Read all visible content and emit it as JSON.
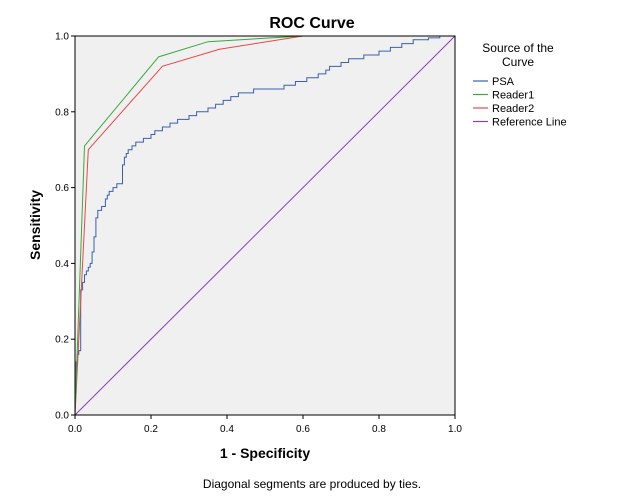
{
  "chart_data": {
    "type": "line",
    "title": "ROC Curve",
    "xlabel": "1 - Specificity",
    "ylabel": "Sensitivity",
    "xlim": [
      0,
      1
    ],
    "ylim": [
      0,
      1
    ],
    "x_ticks": [
      "0.0",
      "0.2",
      "0.4",
      "0.6",
      "0.8",
      "1.0"
    ],
    "y_ticks": [
      "0.0",
      "0.2",
      "0.4",
      "0.6",
      "0.8",
      "1.0"
    ],
    "grid": false,
    "plot_background": "#f0f0f0",
    "legend": {
      "title_line1": "Source of the",
      "title_line2": "Curve",
      "placement": "right"
    },
    "footnote": "Diagonal segments are produced by ties.",
    "series": [
      {
        "name": "PSA",
        "color": "#3a5fb0",
        "step": true,
        "points": [
          [
            0,
            0
          ],
          [
            0,
            0.06
          ],
          [
            0.003,
            0.06
          ],
          [
            0.003,
            0.14
          ],
          [
            0.006,
            0.14
          ],
          [
            0.006,
            0.16
          ],
          [
            0.01,
            0.16
          ],
          [
            0.01,
            0.17
          ],
          [
            0.015,
            0.17
          ],
          [
            0.015,
            0.33
          ],
          [
            0.02,
            0.33
          ],
          [
            0.02,
            0.35
          ],
          [
            0.025,
            0.35
          ],
          [
            0.025,
            0.37
          ],
          [
            0.03,
            0.37
          ],
          [
            0.03,
            0.38
          ],
          [
            0.035,
            0.38
          ],
          [
            0.035,
            0.39
          ],
          [
            0.04,
            0.39
          ],
          [
            0.04,
            0.4
          ],
          [
            0.045,
            0.4
          ],
          [
            0.045,
            0.43
          ],
          [
            0.05,
            0.43
          ],
          [
            0.05,
            0.47
          ],
          [
            0.055,
            0.47
          ],
          [
            0.055,
            0.52
          ],
          [
            0.06,
            0.52
          ],
          [
            0.06,
            0.54
          ],
          [
            0.07,
            0.54
          ],
          [
            0.07,
            0.55
          ],
          [
            0.08,
            0.55
          ],
          [
            0.08,
            0.57
          ],
          [
            0.085,
            0.57
          ],
          [
            0.085,
            0.58
          ],
          [
            0.09,
            0.58
          ],
          [
            0.09,
            0.59
          ],
          [
            0.1,
            0.59
          ],
          [
            0.1,
            0.6
          ],
          [
            0.11,
            0.6
          ],
          [
            0.11,
            0.61
          ],
          [
            0.125,
            0.61
          ],
          [
            0.125,
            0.66
          ],
          [
            0.13,
            0.66
          ],
          [
            0.13,
            0.68
          ],
          [
            0.135,
            0.68
          ],
          [
            0.135,
            0.69
          ],
          [
            0.14,
            0.69
          ],
          [
            0.14,
            0.7
          ],
          [
            0.15,
            0.7
          ],
          [
            0.15,
            0.71
          ],
          [
            0.16,
            0.71
          ],
          [
            0.16,
            0.72
          ],
          [
            0.18,
            0.72
          ],
          [
            0.18,
            0.73
          ],
          [
            0.2,
            0.73
          ],
          [
            0.2,
            0.74
          ],
          [
            0.21,
            0.74
          ],
          [
            0.21,
            0.75
          ],
          [
            0.23,
            0.75
          ],
          [
            0.23,
            0.76
          ],
          [
            0.25,
            0.76
          ],
          [
            0.25,
            0.77
          ],
          [
            0.27,
            0.77
          ],
          [
            0.27,
            0.78
          ],
          [
            0.3,
            0.78
          ],
          [
            0.3,
            0.79
          ],
          [
            0.32,
            0.79
          ],
          [
            0.32,
            0.8
          ],
          [
            0.35,
            0.8
          ],
          [
            0.35,
            0.81
          ],
          [
            0.37,
            0.81
          ],
          [
            0.37,
            0.82
          ],
          [
            0.39,
            0.82
          ],
          [
            0.39,
            0.83
          ],
          [
            0.41,
            0.83
          ],
          [
            0.41,
            0.84
          ],
          [
            0.43,
            0.84
          ],
          [
            0.43,
            0.85
          ],
          [
            0.47,
            0.85
          ],
          [
            0.47,
            0.86
          ],
          [
            0.55,
            0.86
          ],
          [
            0.55,
            0.87
          ],
          [
            0.58,
            0.87
          ],
          [
            0.58,
            0.88
          ],
          [
            0.61,
            0.88
          ],
          [
            0.61,
            0.89
          ],
          [
            0.64,
            0.89
          ],
          [
            0.64,
            0.9
          ],
          [
            0.66,
            0.9
          ],
          [
            0.66,
            0.91
          ],
          [
            0.67,
            0.91
          ],
          [
            0.67,
            0.92
          ],
          [
            0.7,
            0.92
          ],
          [
            0.7,
            0.93
          ],
          [
            0.72,
            0.93
          ],
          [
            0.72,
            0.94
          ],
          [
            0.76,
            0.94
          ],
          [
            0.76,
            0.95
          ],
          [
            0.8,
            0.95
          ],
          [
            0.8,
            0.96
          ],
          [
            0.83,
            0.96
          ],
          [
            0.83,
            0.97
          ],
          [
            0.86,
            0.97
          ],
          [
            0.86,
            0.98
          ],
          [
            0.89,
            0.98
          ],
          [
            0.89,
            0.99
          ],
          [
            0.93,
            0.99
          ],
          [
            0.93,
            0.995
          ],
          [
            0.96,
            0.995
          ],
          [
            0.96,
            1.0
          ],
          [
            1.0,
            1.0
          ]
        ]
      },
      {
        "name": "Reader1",
        "color": "#3aa83a",
        "step": false,
        "points": [
          [
            0,
            0
          ],
          [
            0.025,
            0.71
          ],
          [
            0.22,
            0.945
          ],
          [
            0.35,
            0.985
          ],
          [
            0.6,
            1.0
          ],
          [
            1.0,
            1.0
          ]
        ]
      },
      {
        "name": "Reader2",
        "color": "#e84848",
        "step": false,
        "points": [
          [
            0,
            0
          ],
          [
            0.035,
            0.7
          ],
          [
            0.23,
            0.92
          ],
          [
            0.38,
            0.965
          ],
          [
            0.6,
            1.0
          ],
          [
            1.0,
            1.0
          ]
        ]
      },
      {
        "name": "Reference Line",
        "color": "#8b3fb5",
        "step": false,
        "points": [
          [
            0,
            0
          ],
          [
            1,
            1
          ]
        ]
      }
    ]
  }
}
